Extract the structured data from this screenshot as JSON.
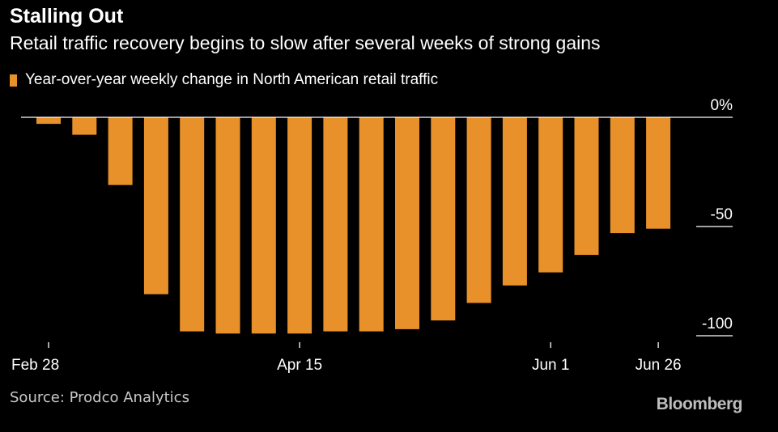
{
  "title": "Stalling Out",
  "subtitle": "Retail traffic recovery begins to slow after several weeks of strong gains",
  "legend_label": "Year-over-year weekly change in North American retail traffic",
  "source": "Source: Prodco Analytics",
  "brand": "Bloomberg",
  "colors": {
    "bar": "#E8912A",
    "background": "#000000",
    "text": "#FFFFFF",
    "axis": "#FFFFFF"
  },
  "chart_data": {
    "type": "bar",
    "title": "Stalling Out",
    "subtitle": "Retail traffic recovery begins to slow after several weeks of strong gains",
    "xlabel": "",
    "ylabel": "",
    "ylim": [
      -100,
      0
    ],
    "y_ticks": [
      {
        "value": 0,
        "label": "0%"
      },
      {
        "value": -50,
        "label": "-50"
      },
      {
        "value": -100,
        "label": "-100"
      }
    ],
    "x_ticks": [
      {
        "index": 0,
        "label": "Feb 28"
      },
      {
        "index": 7,
        "label": "Apr 15"
      },
      {
        "index": 14,
        "label": "Jun 1"
      },
      {
        "index": 17,
        "label": "Jun 26"
      }
    ],
    "legend_position": "top-left",
    "grid": false,
    "series": [
      {
        "name": "Year-over-year weekly change in North American retail traffic",
        "values": [
          -3,
          -8,
          -31,
          -81,
          -98,
          -99,
          -99,
          -99,
          -98,
          -98,
          -97,
          -93,
          -85,
          -77,
          -71,
          -63,
          -53,
          -51
        ]
      }
    ]
  }
}
